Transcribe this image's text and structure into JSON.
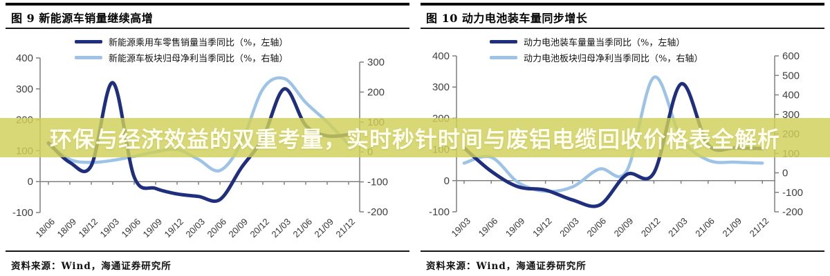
{
  "banner": {
    "text": "环保与经济效益的双重考量，实时秒针时间与废铝电缆回收价格表全解析",
    "band_color": "#d0d158",
    "band_opacity": 0.82,
    "text_color": "#fffdf0"
  },
  "colors": {
    "dark_line": "#1f2f7e",
    "light_line": "#9dc3e6",
    "axis": "#7f7f7f",
    "axis_label": "#3f3f3f"
  },
  "panels": [
    {
      "title": "图 9 新能源车销量继续高增",
      "legend": [
        {
          "label": "新能源乘用车零售销量当季同比（%，左轴）",
          "color": "#1f2f7e"
        },
        {
          "label": "新能源车板块归母净利当季同比（%，右轴）",
          "color": "#9dc3e6"
        }
      ],
      "source": "资料来源：Wind，海通证券研究所"
    },
    {
      "title": "图 10 动力电池装车量同步增长",
      "legend": [
        {
          "label": "动力电池装车量量当季同比（%，左轴）",
          "color": "#1f2f7e"
        },
        {
          "label": "动力电池板块归母净利当季同比（%，右轴）",
          "color": "#9dc3e6"
        }
      ],
      "source": "资料来源：Wind，海通证券研究所"
    }
  ],
  "chart_data": [
    {
      "type": "line",
      "title": "图 9 新能源车销量继续高增",
      "categories": [
        "18/06",
        "18/09",
        "18/12",
        "19/03",
        "19/06",
        "19/09",
        "19/12",
        "20/03",
        "20/06",
        "20/09",
        "20/12",
        "21/03",
        "21/06",
        "21/09",
        "21/12"
      ],
      "series": [
        {
          "name": "新能源乘用车零售销量当季同比",
          "axis": "left",
          "color": "#1f2f7e",
          "values": [
            125,
            62,
            52,
            320,
            15,
            -22,
            -40,
            -48,
            -58,
            45,
            140,
            300,
            182,
            148,
            152
          ]
        },
        {
          "name": "新能源车板块归母净利当季同比",
          "axis": "right",
          "color": "#9dc3e6",
          "values": [
            28,
            -25,
            -35,
            -28,
            -15,
            0,
            8,
            -25,
            -62,
            30,
            210,
            245,
            165,
            100,
            25
          ]
        }
      ],
      "left_axis": {
        "min": -100,
        "max": 400,
        "step": 100,
        "ticks": [
          400,
          300,
          200,
          100,
          0,
          -100
        ]
      },
      "right_axis": {
        "min": -200,
        "max": 300,
        "step": 100,
        "ticks": [
          300,
          200,
          100,
          0,
          -100,
          -200
        ]
      },
      "grid": false,
      "legend_position": "top"
    },
    {
      "type": "line",
      "title": "图 10 动力电池装车量同步增长",
      "categories": [
        "19/03",
        "19/06",
        "19/09",
        "19/12",
        "20/03",
        "20/06",
        "20/09",
        "20/12",
        "21/03",
        "21/06",
        "21/09",
        "21/12"
      ],
      "series": [
        {
          "name": "动力电池装车量量当季同比",
          "axis": "left",
          "color": "#1f2f7e",
          "values": [
            105,
            30,
            -20,
            -30,
            -62,
            -78,
            20,
            25,
            310,
            115,
            105,
            103
          ]
        },
        {
          "name": "动力电池板块归母净利当季同比",
          "axis": "right",
          "color": "#9dc3e6",
          "values": [
            50,
            80,
            -50,
            -95,
            -72,
            20,
            10,
            490,
            180,
            65,
            55,
            50
          ]
        }
      ],
      "left_axis": {
        "min": -100,
        "max": 400,
        "step": 100,
        "ticks": [
          400,
          300,
          200,
          100,
          0,
          -100
        ]
      },
      "right_axis": {
        "min": -200,
        "max": 600,
        "step": 100,
        "ticks": [
          600,
          500,
          400,
          300,
          200,
          100,
          0,
          -100,
          -200
        ]
      },
      "grid": false,
      "legend_position": "top"
    }
  ]
}
